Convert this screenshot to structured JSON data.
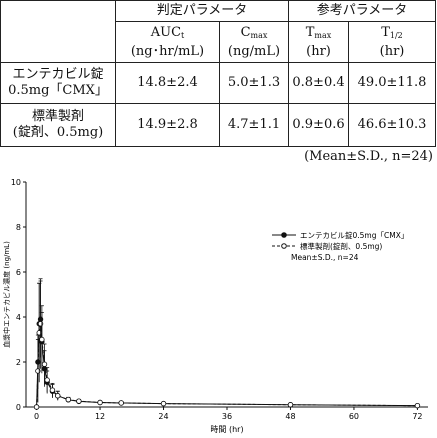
{
  "table": {
    "group_headers": [
      "判定パラメータ",
      "参考パラメータ"
    ],
    "col_headers": [
      {
        "main": "AUC",
        "sub": "t",
        "unit": "(ng･hr/mL)"
      },
      {
        "main": "C",
        "sub": "max",
        "unit": "(ng/mL)"
      },
      {
        "main": "T",
        "sub": "max",
        "unit": "(hr)"
      },
      {
        "main": "T",
        "sub": "1/2",
        "unit": "(hr)"
      }
    ],
    "rows": [
      {
        "label1": "エンテカビル錠",
        "label2": "0.5mg「CMX」",
        "values": [
          "14.8±2.4",
          "5.0±1.3",
          "0.8±0.4",
          "49.0±11.8"
        ]
      },
      {
        "label1": "標準製剤",
        "label2": "(錠剤、0.5mg)",
        "values": [
          "14.9±2.8",
          "4.7±1.1",
          "0.9±0.6",
          "46.6±10.3"
        ]
      }
    ],
    "note": "(Mean±S.D., n=24)"
  },
  "chart_data": {
    "type": "line",
    "xlabel": "時間 (hr)",
    "ylabel": "血漿中エンテカビル濃度 (ng/mL)",
    "xlim": [
      -2,
      74
    ],
    "ylim": [
      0,
      10
    ],
    "xticks": [
      0,
      12,
      24,
      36,
      48,
      60,
      72
    ],
    "yticks": [
      0,
      2,
      4,
      6,
      8,
      10
    ],
    "legend_position": "top-right",
    "legend_note": "Mean±S.D., n=24",
    "series": [
      {
        "name": "エンテカビル錠0.5mg「CMX」",
        "marker": "filled-circle",
        "x": [
          0,
          0.25,
          0.5,
          0.75,
          1,
          1.5,
          2,
          3,
          4,
          6,
          8,
          12,
          16,
          24,
          48,
          72
        ],
        "y": [
          0,
          2.0,
          3.7,
          3.9,
          2.9,
          1.7,
          1.1,
          0.7,
          0.5,
          0.32,
          0.25,
          0.2,
          0.18,
          0.15,
          0.1,
          0.06
        ],
        "sd": [
          0,
          1.2,
          1.8,
          1.7,
          1.3,
          0.8,
          0.5,
          0.3,
          0.2,
          0.1,
          0.08,
          0.06,
          0.05,
          0.04,
          0.03,
          0.02
        ]
      },
      {
        "name": "標準製剤(錠剤、0.5mg)",
        "marker": "open-circle",
        "x": [
          0,
          0.25,
          0.5,
          0.75,
          1,
          1.5,
          2,
          3,
          4,
          6,
          8,
          12,
          16,
          24,
          48,
          72
        ],
        "y": [
          0,
          1.6,
          3.3,
          3.7,
          3.0,
          1.9,
          1.2,
          0.75,
          0.5,
          0.33,
          0.26,
          0.2,
          0.18,
          0.15,
          0.1,
          0.06
        ],
        "sd": [
          0,
          1.4,
          2.2,
          2.0,
          1.5,
          0.9,
          0.55,
          0.3,
          0.2,
          0.1,
          0.08,
          0.06,
          0.05,
          0.04,
          0.03,
          0.02
        ]
      }
    ]
  }
}
